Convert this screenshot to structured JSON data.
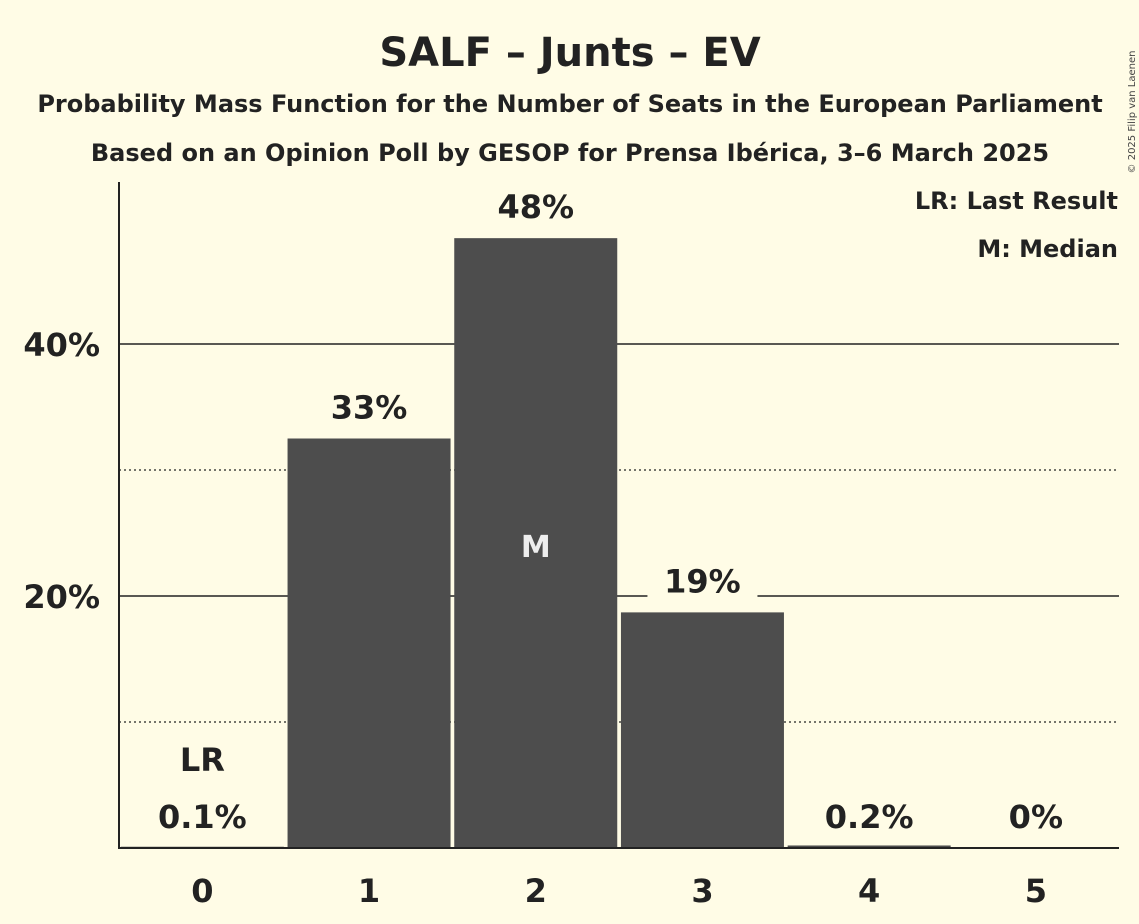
{
  "chart_data": {
    "type": "bar",
    "title": "SALF – Junts – EV",
    "subtitle_1": "Probability Mass Function for the Number of Seats in the European Parliament",
    "subtitle_2": "Based on an Opinion Poll by GESOP for Prensa Ibérica, 3–6 March 2025",
    "categories": [
      "0",
      "1",
      "2",
      "3",
      "4",
      "5"
    ],
    "values": [
      0.1,
      32.5,
      48.4,
      18.7,
      0.2,
      0.0
    ],
    "value_labels": [
      "0.1%",
      "33%",
      "48%",
      "19%",
      "0.2%",
      "0%"
    ],
    "ylim": [
      0,
      53
    ],
    "y_ticks": [
      {
        "value": 20,
        "label": "20%"
      },
      {
        "value": 40,
        "label": "40%"
      }
    ],
    "minor_gridlines": [
      10,
      30
    ],
    "last_result": {
      "index": 0,
      "label": "LR"
    },
    "median": {
      "index": 2,
      "label": "M"
    },
    "legend": [
      "LR: Last Result",
      "M: Median"
    ],
    "legend_position": "top-right",
    "copyright": "© 2025 Filip van Laenen",
    "colors": {
      "bar": "#4d4d4d",
      "background": "#fffce6",
      "text": "#222222"
    }
  }
}
